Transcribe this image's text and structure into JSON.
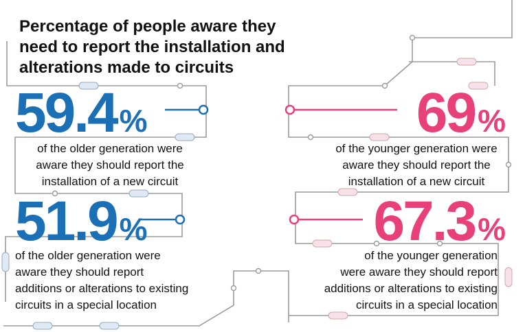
{
  "title": [
    "Percentage of people aware they",
    "need to report the installation and",
    "alterations made to circuits"
  ],
  "stats": [
    {
      "value": "59.4",
      "unit": "%",
      "text": [
        "of the older generation were",
        "aware they should report the",
        "installation of a new circuit"
      ]
    },
    {
      "value": "69",
      "unit": "%",
      "text": [
        "of the younger generation were",
        "aware they should report the",
        "installation of a new circuit"
      ]
    },
    {
      "value": "51.9",
      "unit": "%",
      "text": [
        "of the older generation were",
        "aware they should report",
        "additions or alterations to existing",
        "circuits in a special location"
      ]
    },
    {
      "value": "67.3",
      "unit": "%",
      "text": [
        "of the younger generation",
        "were aware they should report",
        "additions or alterations to existing",
        "circuits in a special location"
      ]
    }
  ]
}
